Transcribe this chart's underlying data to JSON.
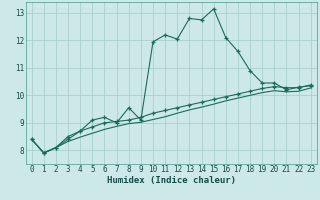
{
  "xlabel": "Humidex (Indice chaleur)",
  "bg_color": "#cce8e8",
  "line_color": "#1a6b5a",
  "grid_color": "#aacece",
  "xlim": [
    -0.5,
    23.5
  ],
  "ylim": [
    7.5,
    13.4
  ],
  "xticks": [
    0,
    1,
    2,
    3,
    4,
    5,
    6,
    7,
    8,
    9,
    10,
    11,
    12,
    13,
    14,
    15,
    16,
    17,
    18,
    19,
    20,
    21,
    22,
    23
  ],
  "yticks": [
    8,
    9,
    10,
    11,
    12,
    13
  ],
  "line1_x": [
    0,
    1,
    2,
    3,
    4,
    5,
    6,
    7,
    8,
    9,
    10,
    11,
    12,
    13,
    14,
    15,
    16,
    17,
    18,
    19,
    20,
    21,
    22,
    23
  ],
  "line1_y": [
    8.4,
    7.9,
    8.1,
    8.5,
    8.7,
    9.1,
    9.2,
    9.0,
    9.55,
    9.1,
    11.95,
    12.2,
    12.05,
    12.8,
    12.75,
    13.15,
    12.1,
    11.6,
    10.9,
    10.45,
    10.45,
    10.2,
    10.3,
    10.35
  ],
  "line2_x": [
    0,
    1,
    2,
    3,
    4,
    5,
    6,
    7,
    8,
    9,
    10,
    11,
    12,
    13,
    14,
    15,
    16,
    17,
    18,
    19,
    20,
    21,
    22,
    23
  ],
  "line2_y": [
    8.4,
    7.9,
    8.1,
    8.4,
    8.7,
    8.85,
    9.0,
    9.05,
    9.1,
    9.2,
    9.35,
    9.45,
    9.55,
    9.65,
    9.75,
    9.85,
    9.95,
    10.05,
    10.15,
    10.25,
    10.32,
    10.28,
    10.28,
    10.38
  ],
  "line3_x": [
    0,
    1,
    2,
    3,
    4,
    5,
    6,
    7,
    8,
    9,
    10,
    11,
    12,
    13,
    14,
    15,
    16,
    17,
    18,
    19,
    20,
    21,
    22,
    23
  ],
  "line3_y": [
    8.4,
    7.9,
    8.1,
    8.32,
    8.48,
    8.62,
    8.76,
    8.87,
    8.97,
    9.02,
    9.12,
    9.22,
    9.35,
    9.47,
    9.57,
    9.68,
    9.8,
    9.9,
    10.0,
    10.1,
    10.17,
    10.13,
    10.15,
    10.27
  ]
}
